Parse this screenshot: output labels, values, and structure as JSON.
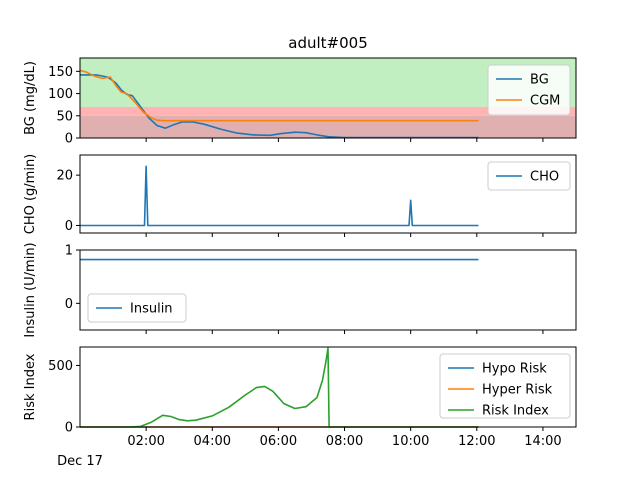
{
  "figure": {
    "title": "adult#005",
    "date_label": "Dec 17"
  },
  "colors": {
    "blue": "#1f77b4",
    "orange": "#ff7f0e",
    "green": "#2ca02c",
    "target_band": "#c2efc2",
    "hypo_band": "#ffb3b3",
    "severe_hypo_band": "#e0b0b0"
  },
  "chart_data": [
    {
      "type": "line",
      "ylabel": "BG (mg/dL)",
      "xlim": [
        "00:00",
        "15:00"
      ],
      "ylim": [
        0,
        180
      ],
      "yticks": [
        0,
        50,
        100,
        150
      ],
      "bands": [
        {
          "from": 70,
          "to": 180,
          "color": "target_band"
        },
        {
          "from": 50,
          "to": 70,
          "color": "hypo_band"
        },
        {
          "from": 0,
          "to": 50,
          "color": "severe_hypo_band"
        }
      ],
      "legend": "top-right",
      "series": [
        {
          "name": "BG",
          "color": "blue",
          "x": [
            "00:00",
            "00:30",
            "00:50",
            "01:05",
            "01:15",
            "01:25",
            "01:35",
            "01:50",
            "02:05",
            "02:20",
            "02:35",
            "02:50",
            "03:05",
            "03:25",
            "03:45",
            "04:15",
            "04:45",
            "05:15",
            "05:45",
            "06:05",
            "06:30",
            "06:50",
            "07:10",
            "07:30",
            "08:00",
            "09:00",
            "10:00",
            "11:00",
            "12:03"
          ],
          "y": [
            142,
            142,
            137,
            124,
            108,
            98,
            95,
            70,
            45,
            28,
            22,
            30,
            36,
            36,
            31,
            20,
            11,
            7,
            6,
            10,
            13,
            12,
            7,
            3,
            1,
            1,
            1,
            1,
            1
          ]
        },
        {
          "name": "CGM",
          "color": "orange",
          "x": [
            "00:00",
            "00:12",
            "00:25",
            "00:40",
            "00:55",
            "01:05",
            "01:15",
            "01:25",
            "01:40",
            "01:55",
            "02:10",
            "02:20",
            "02:30",
            "03:30",
            "05:00",
            "07:00",
            "09:00",
            "11:00",
            "12:03"
          ],
          "y": [
            152,
            148,
            140,
            134,
            137,
            118,
            103,
            100,
            80,
            58,
            45,
            40,
            39,
            39,
            39,
            39,
            39,
            39,
            39
          ]
        }
      ]
    },
    {
      "type": "line",
      "ylabel": "CHO (g/min)",
      "xlim": [
        "00:00",
        "15:00"
      ],
      "ylim": [
        -3,
        28
      ],
      "yticks": [
        0,
        20
      ],
      "legend": "top-right",
      "series": [
        {
          "name": "CHO",
          "color": "blue",
          "x": [
            "00:00",
            "01:57",
            "02:00",
            "02:03",
            "09:57",
            "10:00",
            "10:03",
            "12:03"
          ],
          "y": [
            0,
            0,
            23.5,
            0,
            0,
            10,
            0,
            0
          ]
        }
      ]
    },
    {
      "type": "line",
      "ylabel": "Insulin (U/min)",
      "xlim": [
        "00:00",
        "15:00"
      ],
      "ylim": [
        -0.5,
        1.0
      ],
      "yticks": [
        0,
        1
      ],
      "legend": "bottom-left",
      "series": [
        {
          "name": "Insulin",
          "color": "blue",
          "x": [
            "00:00",
            "12:03"
          ],
          "y": [
            0.82,
            0.82
          ]
        }
      ]
    },
    {
      "type": "line",
      "ylabel": "Risk Index",
      "xlim": [
        "00:00",
        "15:00"
      ],
      "ylim": [
        0,
        650
      ],
      "yticks": [
        0,
        500
      ],
      "xticks": [
        "02:00",
        "04:00",
        "06:00",
        "08:00",
        "10:00",
        "12:00",
        "14:00"
      ],
      "legend": "top-right",
      "series": [
        {
          "name": "Hypo Risk",
          "color": "blue",
          "x": [
            "00:00",
            "12:03"
          ],
          "y": [
            0,
            0
          ]
        },
        {
          "name": "Hyper Risk",
          "color": "orange",
          "x": [
            "00:00",
            "12:03"
          ],
          "y": [
            0,
            0
          ]
        },
        {
          "name": "Risk Index",
          "color": "green",
          "x": [
            "00:00",
            "01:30",
            "01:50",
            "02:10",
            "02:30",
            "02:45",
            "03:00",
            "03:15",
            "03:30",
            "04:00",
            "04:30",
            "05:00",
            "05:20",
            "05:35",
            "05:50",
            "06:10",
            "06:30",
            "06:50",
            "07:10",
            "07:20",
            "07:27",
            "07:30",
            "07:32",
            "12:03"
          ],
          "y": [
            0,
            0,
            5,
            40,
            95,
            85,
            60,
            50,
            55,
            90,
            160,
            260,
            320,
            330,
            290,
            190,
            150,
            165,
            240,
            380,
            550,
            640,
            0,
            0
          ]
        }
      ]
    }
  ]
}
